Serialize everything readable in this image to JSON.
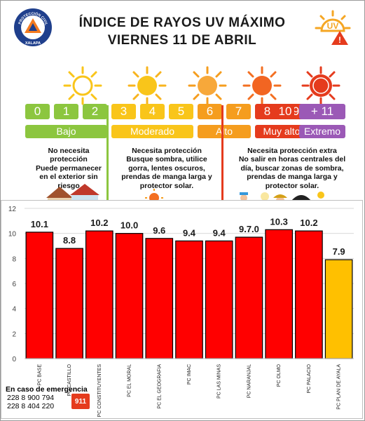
{
  "header": {
    "title_line1": "ÍNDICE DE RAYOS UV MÁXIMO",
    "title_line2": "VIERNES 11 DE ABRIL",
    "logo_arc_text": "PROTECCIÓN CIVIL",
    "logo_bottom_text": "XALAPA",
    "badge_text": "UV"
  },
  "scale": {
    "numbers": [
      "0",
      "1",
      "2",
      "3",
      "4",
      "5",
      "6",
      "7",
      "8",
      "9",
      "10",
      "+ 11"
    ],
    "bands": [
      {
        "label": "Bajo",
        "color": "#8cc63f"
      },
      {
        "label": "Moderado",
        "color": "#f9c51a"
      },
      {
        "label": "Alto",
        "color": "#f59d1e"
      },
      {
        "label": "Muy alto",
        "color": "#e53b1d"
      },
      {
        "label": "Extremo",
        "color": "#9b59b6"
      }
    ]
  },
  "advice": {
    "low": [
      "No necesita",
      "protección",
      "Puede permanecer",
      "en el exterior sin",
      "riesgo"
    ],
    "moderate": [
      "Necesita protección",
      "Busque sombra, utilice",
      "gorra, lentes oscuros,",
      "prendas de manga larga y",
      "protector solar."
    ],
    "high": [
      "Necesita protección extra",
      "No salir en horas centrales del",
      "día, buscar zonas de sombra,",
      "prendas de manga larga y",
      "protector solar."
    ]
  },
  "emergency": {
    "heading": "En caso de emergencia",
    "phone1": "228 8 900 794",
    "phone2": "228 8 404 220",
    "badge": "911"
  },
  "colors": {
    "bar_red": "#ff0000",
    "bar_yellow": "#ffc000",
    "grid": "#d9d9d9"
  },
  "chart_data": {
    "type": "bar",
    "categories": [
      "PC BASE",
      "PC CASTILLO",
      "PC CONSTITUYENTES",
      "PC EL MORAL",
      "PC EL GEOGRAFIA",
      "PC IMAC",
      "PC LAS MINAS",
      "PC NARANJAL",
      "PC OLMO",
      "PC PALACIO",
      "PC PLAN DE AYALA"
    ],
    "values": [
      10.1,
      8.8,
      10.2,
      10.0,
      9.6,
      9.4,
      9.4,
      9.7,
      10.3,
      10.2,
      7.9
    ],
    "value_labels": [
      "10.1",
      "8.8",
      "10.2",
      "10.0",
      "9.6",
      "9.4",
      "9.4",
      "9.7.0",
      "10.3",
      "10.2",
      "7.9"
    ],
    "bar_colors": [
      "#ff0000",
      "#ff0000",
      "#ff0000",
      "#ff0000",
      "#ff0000",
      "#ff0000",
      "#ff0000",
      "#ff0000",
      "#ff0000",
      "#ff0000",
      "#ffc000"
    ],
    "yticks": [
      "0",
      "2",
      "4",
      "6",
      "8",
      "10",
      "12"
    ],
    "ylim": [
      0,
      12
    ],
    "grid": true
  }
}
